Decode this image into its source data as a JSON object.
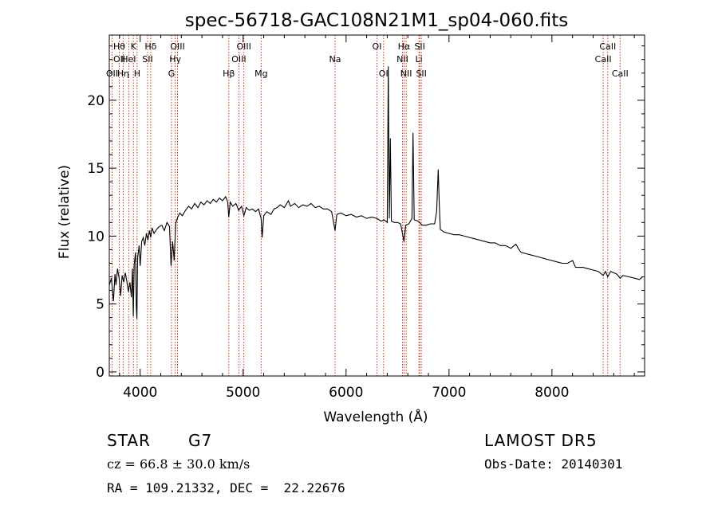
{
  "chart_data": {
    "type": "line",
    "title": "spec-56718-GAC108N21M1_sp04-060.fits",
    "xlabel": "Wavelength (Å)",
    "ylabel": "Flux (relative)",
    "xlim": [
      3700,
      8900
    ],
    "ylim": [
      -0.3,
      24.8
    ],
    "xticks": [
      4000,
      5000,
      6000,
      7000,
      8000
    ],
    "yticks": [
      0,
      5,
      10,
      15,
      20
    ],
    "grid": false,
    "series": [
      {
        "points": [
          [
            3700,
            6.4
          ],
          [
            3720,
            6.9
          ],
          [
            3740,
            5.2
          ],
          [
            3755,
            7.2
          ],
          [
            3765,
            6.4
          ],
          [
            3780,
            7.6
          ],
          [
            3795,
            6.9
          ],
          [
            3810,
            5.6
          ],
          [
            3825,
            7.1
          ],
          [
            3840,
            6.6
          ],
          [
            3855,
            7.3
          ],
          [
            3870,
            6.7
          ],
          [
            3885,
            5.9
          ],
          [
            3900,
            6.6
          ],
          [
            3915,
            5.5
          ],
          [
            3925,
            7.6
          ],
          [
            3933,
            4.1
          ],
          [
            3942,
            7.9
          ],
          [
            3955,
            8.8
          ],
          [
            3962,
            4.9
          ],
          [
            3968,
            3.9
          ],
          [
            3975,
            8.4
          ],
          [
            3990,
            9.3
          ],
          [
            4000,
            7.8
          ],
          [
            4015,
            9.6
          ],
          [
            4030,
            9.9
          ],
          [
            4045,
            9.3
          ],
          [
            4060,
            10.2
          ],
          [
            4075,
            9.7
          ],
          [
            4090,
            10.4
          ],
          [
            4102,
            9.9
          ],
          [
            4115,
            10.6
          ],
          [
            4135,
            10.2
          ],
          [
            4160,
            10.5
          ],
          [
            4185,
            10.7
          ],
          [
            4210,
            10.8
          ],
          [
            4235,
            10.4
          ],
          [
            4260,
            11.0
          ],
          [
            4285,
            10.7
          ],
          [
            4300,
            7.8
          ],
          [
            4315,
            9.6
          ],
          [
            4330,
            8.2
          ],
          [
            4345,
            10.9
          ],
          [
            4365,
            11.4
          ],
          [
            4385,
            11.7
          ],
          [
            4410,
            11.5
          ],
          [
            4440,
            11.9
          ],
          [
            4470,
            12.2
          ],
          [
            4500,
            12.0
          ],
          [
            4530,
            12.4
          ],
          [
            4560,
            12.1
          ],
          [
            4590,
            12.5
          ],
          [
            4620,
            12.3
          ],
          [
            4650,
            12.6
          ],
          [
            4680,
            12.4
          ],
          [
            4710,
            12.7
          ],
          [
            4740,
            12.5
          ],
          [
            4770,
            12.8
          ],
          [
            4800,
            12.6
          ],
          [
            4830,
            12.9
          ],
          [
            4850,
            12.5
          ],
          [
            4861,
            11.4
          ],
          [
            4875,
            12.5
          ],
          [
            4900,
            12.2
          ],
          [
            4930,
            12.4
          ],
          [
            4957,
            11.9
          ],
          [
            4985,
            12.2
          ],
          [
            5007,
            11.5
          ],
          [
            5030,
            12.1
          ],
          [
            5060,
            11.9
          ],
          [
            5090,
            12.0
          ],
          [
            5120,
            11.8
          ],
          [
            5150,
            12.0
          ],
          [
            5175,
            11.3
          ],
          [
            5185,
            9.9
          ],
          [
            5200,
            11.5
          ],
          [
            5230,
            11.8
          ],
          [
            5270,
            11.6
          ],
          [
            5300,
            12.0
          ],
          [
            5330,
            12.1
          ],
          [
            5360,
            12.3
          ],
          [
            5400,
            12.1
          ],
          [
            5440,
            12.6
          ],
          [
            5460,
            12.2
          ],
          [
            5500,
            12.4
          ],
          [
            5540,
            12.1
          ],
          [
            5580,
            12.3
          ],
          [
            5620,
            12.2
          ],
          [
            5660,
            12.4
          ],
          [
            5700,
            12.1
          ],
          [
            5740,
            12.2
          ],
          [
            5780,
            12.0
          ],
          [
            5820,
            12.0
          ],
          [
            5860,
            11.8
          ],
          [
            5893,
            10.4
          ],
          [
            5910,
            11.6
          ],
          [
            5950,
            11.7
          ],
          [
            6000,
            11.5
          ],
          [
            6050,
            11.6
          ],
          [
            6100,
            11.4
          ],
          [
            6150,
            11.5
          ],
          [
            6200,
            11.3
          ],
          [
            6250,
            11.4
          ],
          [
            6300,
            11.3
          ],
          [
            6340,
            11.1
          ],
          [
            6370,
            11.2
          ],
          [
            6400,
            11.0
          ],
          [
            6410,
            22.5
          ],
          [
            6420,
            11.3
          ],
          [
            6430,
            17.2
          ],
          [
            6440,
            11.1
          ],
          [
            6470,
            11.0
          ],
          [
            6500,
            11.0
          ],
          [
            6530,
            10.9
          ],
          [
            6563,
            9.6
          ],
          [
            6580,
            10.8
          ],
          [
            6610,
            10.9
          ],
          [
            6640,
            11.3
          ],
          [
            6650,
            17.6
          ],
          [
            6662,
            11.2
          ],
          [
            6700,
            11.1
          ],
          [
            6740,
            10.8
          ],
          [
            6780,
            10.8
          ],
          [
            6820,
            10.9
          ],
          [
            6860,
            10.9
          ],
          [
            6880,
            11.8
          ],
          [
            6895,
            14.9
          ],
          [
            6905,
            12.4
          ],
          [
            6915,
            10.5
          ],
          [
            6950,
            10.3
          ],
          [
            7000,
            10.2
          ],
          [
            7050,
            10.1
          ],
          [
            7100,
            10.1
          ],
          [
            7150,
            10.0
          ],
          [
            7200,
            9.9
          ],
          [
            7250,
            9.8
          ],
          [
            7300,
            9.7
          ],
          [
            7350,
            9.6
          ],
          [
            7400,
            9.5
          ],
          [
            7450,
            9.5
          ],
          [
            7500,
            9.3
          ],
          [
            7550,
            9.3
          ],
          [
            7600,
            9.1
          ],
          [
            7650,
            9.4
          ],
          [
            7680,
            9.0
          ],
          [
            7700,
            8.8
          ],
          [
            7750,
            8.7
          ],
          [
            7800,
            8.6
          ],
          [
            7850,
            8.5
          ],
          [
            7900,
            8.4
          ],
          [
            7950,
            8.3
          ],
          [
            8000,
            8.2
          ],
          [
            8050,
            8.1
          ],
          [
            8100,
            8.0
          ],
          [
            8150,
            8.0
          ],
          [
            8200,
            8.2
          ],
          [
            8230,
            7.7
          ],
          [
            8300,
            7.7
          ],
          [
            8350,
            7.6
          ],
          [
            8400,
            7.5
          ],
          [
            8450,
            7.4
          ],
          [
            8498,
            7.1
          ],
          [
            8520,
            7.4
          ],
          [
            8542,
            7.0
          ],
          [
            8570,
            7.4
          ],
          [
            8600,
            7.3
          ],
          [
            8630,
            7.2
          ],
          [
            8662,
            6.9
          ],
          [
            8690,
            7.1
          ],
          [
            8750,
            7.0
          ],
          [
            8800,
            6.9
          ],
          [
            8850,
            6.8
          ],
          [
            8880,
            7.0
          ]
        ]
      }
    ],
    "line_markers": [
      {
        "wl": 3727,
        "labels": [
          {
            "row": 3,
            "text": "OII"
          }
        ]
      },
      {
        "wl": 3797,
        "labels": [
          {
            "row": 1,
            "text": "Hθ"
          },
          {
            "row": 2,
            "text": "OII"
          }
        ]
      },
      {
        "wl": 3835,
        "labels": [
          {
            "row": 3,
            "text": "Hη"
          }
        ]
      },
      {
        "wl": 3889,
        "labels": [
          {
            "row": 2,
            "text": "HeI"
          }
        ]
      },
      {
        "wl": 3934,
        "labels": [
          {
            "row": 1,
            "text": "K"
          }
        ]
      },
      {
        "wl": 3970,
        "labels": [
          {
            "row": 3,
            "text": "H"
          }
        ]
      },
      {
        "wl": 4072,
        "labels": [
          {
            "row": 2,
            "text": "SII"
          }
        ]
      },
      {
        "wl": 4102,
        "labels": [
          {
            "row": 1,
            "text": "Hδ"
          }
        ]
      },
      {
        "wl": 4304,
        "labels": [
          {
            "row": 3,
            "text": "G"
          }
        ]
      },
      {
        "wl": 4340,
        "labels": [
          {
            "row": 2,
            "text": "Hγ"
          }
        ]
      },
      {
        "wl": 4363,
        "labels": [
          {
            "row": 1,
            "text": "OIII"
          }
        ]
      },
      {
        "wl": 4861,
        "labels": [
          {
            "row": 3,
            "text": "Hβ"
          }
        ]
      },
      {
        "wl": 4959,
        "labels": [
          {
            "row": 2,
            "text": "OIII"
          }
        ]
      },
      {
        "wl": 5007,
        "labels": [
          {
            "row": 1,
            "text": "OIII"
          }
        ]
      },
      {
        "wl": 5175,
        "labels": [
          {
            "row": 3,
            "text": "Mg"
          }
        ]
      },
      {
        "wl": 5893,
        "labels": [
          {
            "row": 2,
            "text": "Na"
          }
        ]
      },
      {
        "wl": 6300,
        "labels": [
          {
            "row": 1,
            "text": "OI"
          }
        ]
      },
      {
        "wl": 6364,
        "labels": [
          {
            "row": 3,
            "text": "OI"
          }
        ]
      },
      {
        "wl": 6548,
        "labels": [
          {
            "row": 2,
            "text": "NII"
          }
        ]
      },
      {
        "wl": 6563,
        "labels": [
          {
            "row": 1,
            "text": "Hα"
          }
        ]
      },
      {
        "wl": 6584,
        "labels": [
          {
            "row": 3,
            "text": "NII"
          }
        ]
      },
      {
        "wl": 6708,
        "labels": [
          {
            "row": 2,
            "text": "Li"
          }
        ]
      },
      {
        "wl": 6716,
        "labels": [
          {
            "row": 1,
            "text": "SII"
          }
        ]
      },
      {
        "wl": 6731,
        "labels": [
          {
            "row": 3,
            "text": "SII"
          }
        ]
      },
      {
        "wl": 8498,
        "labels": [
          {
            "row": 2,
            "text": "CaII"
          }
        ]
      },
      {
        "wl": 8542,
        "labels": [
          {
            "row": 1,
            "text": "CaII"
          }
        ]
      },
      {
        "wl": 8662,
        "labels": [
          {
            "row": 3,
            "text": "CaII"
          }
        ]
      }
    ],
    "colors": {
      "spectrum": "#000000",
      "marker": "#cc2200",
      "axes": "#000000"
    }
  },
  "info": {
    "class": "STAR",
    "subclass": "G7",
    "survey": "LAMOST DR5",
    "cz": "cz = 66.8 ± 30.0 km/s",
    "obs_date": "Obs-Date: 20140301",
    "radec": "RA = 109.21332, DEC =  22.22676"
  }
}
